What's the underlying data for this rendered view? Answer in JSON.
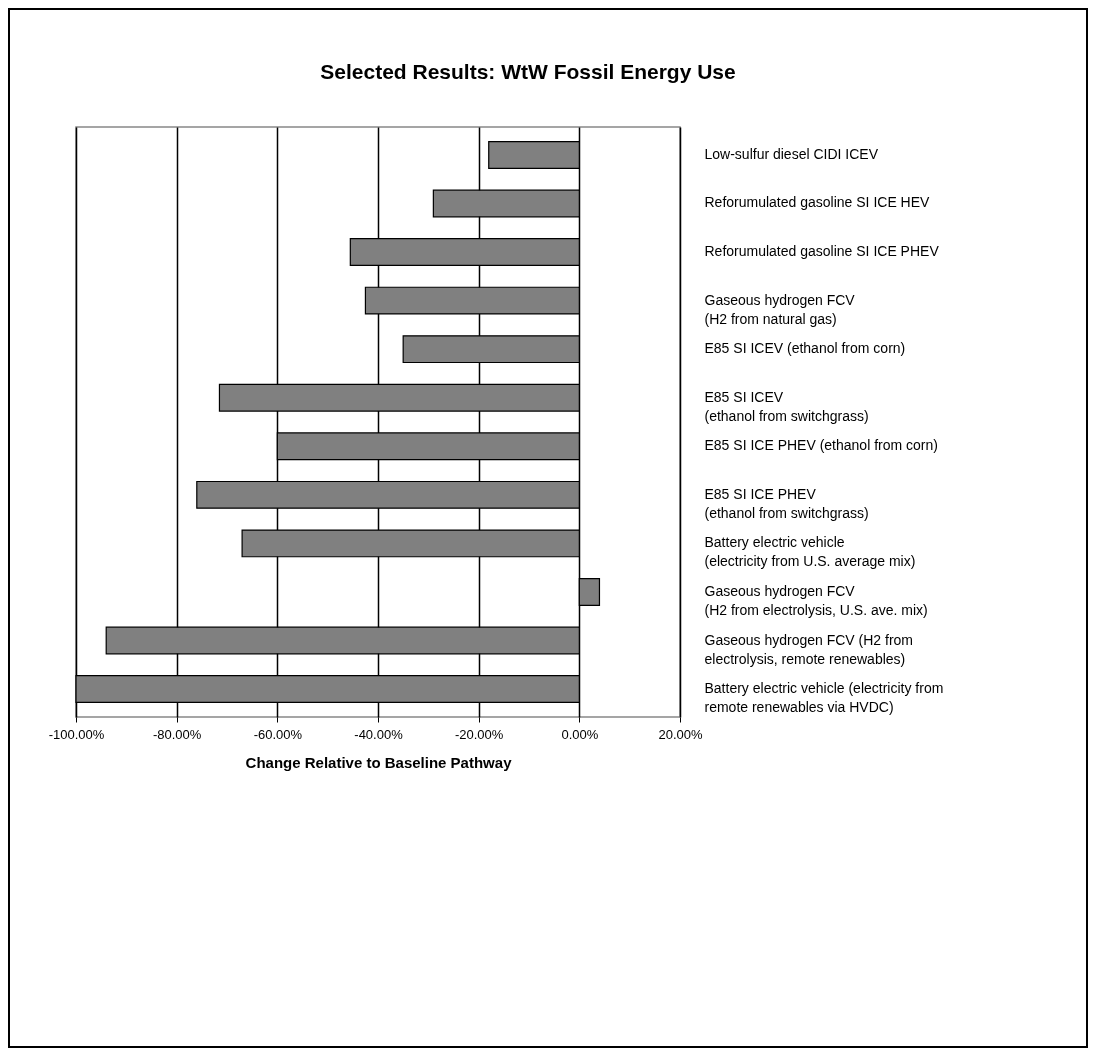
{
  "chart_data": {
    "type": "bar",
    "orientation": "horizontal",
    "title": "Selected Results: WtW Fossil Energy Use",
    "xlabel": "Change Relative to Baseline Pathway",
    "categories": [
      "Low-sulfur diesel CIDI ICEV",
      "Reforumulated gasoline SI ICE HEV",
      "Reforumulated gasoline SI ICE PHEV",
      "Gaseous hydrogen FCV\n(H2 from natural gas)",
      "E85 SI ICEV (ethanol from corn)",
      "E85 SI ICEV\n(ethanol from switchgrass)",
      "E85 SI ICE PHEV (ethanol from corn)",
      "E85 SI ICE PHEV\n(ethanol from switchgrass)",
      "Battery electric vehicle\n(electricity from U.S. average mix)",
      "Gaseous hydrogen FCV\n(H2 from electrolysis, U.S. ave. mix)",
      "Gaseous hydrogen FCV (H2 from\nelectrolysis, remote renewables)",
      "Battery electric vehicle (electricity from\nremote renewables via HVDC)"
    ],
    "values": [
      -18,
      -29,
      -45.5,
      -42.5,
      -35,
      -71.5,
      -60,
      -76,
      -67,
      4,
      -94,
      -100
    ],
    "color": "#808080",
    "xlim": [
      -100,
      20
    ],
    "xticks": [
      {
        "value": -100,
        "label": "-100.00%"
      },
      {
        "value": -80,
        "label": "-80.00%"
      },
      {
        "value": -60,
        "label": "-60.00%"
      },
      {
        "value": -40,
        "label": "-40.00%"
      },
      {
        "value": -20,
        "label": "-20.00%"
      },
      {
        "value": 0,
        "label": "0.00%"
      },
      {
        "value": 20,
        "label": "20.00%"
      }
    ],
    "grid": "x"
  }
}
